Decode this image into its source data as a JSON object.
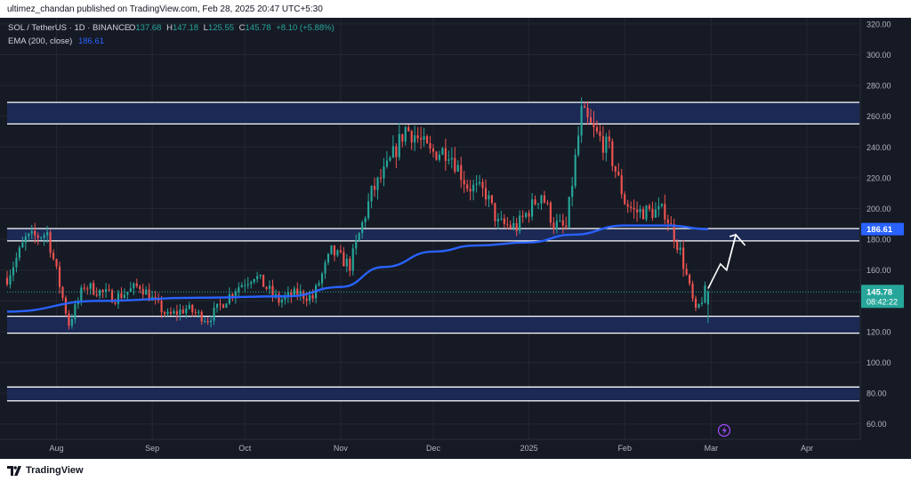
{
  "header": {
    "publisher_text": "ultimez_chandan published on TradingView.com, Feb 28, 2025 20:47 UTC+5:30"
  },
  "legend": {
    "symbol": "SOL / TetherUS · 1D · BINANCE",
    "open_label": "O",
    "open": "137.68",
    "high_label": "H",
    "high": "147.18",
    "low_label": "L",
    "low": "125.55",
    "close_label": "C",
    "close": "145.78",
    "change": "+8.10 (+5.88%)",
    "ema_label": "EMA (200, close)",
    "ema_value": "186.61"
  },
  "price_tags": {
    "ema": "186.61",
    "last": "145.78",
    "countdown": "08:42:22"
  },
  "footer": {
    "brand": "TradingView"
  },
  "colors": {
    "background": "#161a25",
    "grid": "#232733",
    "up": "#26a69a",
    "down": "#ef5350",
    "ema": "#2962ff",
    "zone_fill": "#1b2a56",
    "zone_line": "#ffffff",
    "axis_text": "#b2b5be",
    "last_price": "#26a69a",
    "ema_tag": "#2962ff"
  },
  "chart_data": {
    "type": "candlestick",
    "ylim": [
      50,
      324
    ],
    "y_ticks": [
      60,
      80,
      100,
      120,
      140,
      160,
      180,
      200,
      220,
      240,
      260,
      280,
      300,
      320
    ],
    "y_tick_labels": [
      "60.00",
      "80.00",
      "100.00",
      "120.00",
      "140.00",
      "160.00",
      "180.00",
      "200.00",
      "220.00",
      "240.00",
      "260.00",
      "280.00",
      "300.00",
      "320.00"
    ],
    "x_range": [
      "2024-07-16",
      "2025-04-18"
    ],
    "x_ticks": [
      {
        "date": "2024-08-01",
        "label": "Aug"
      },
      {
        "date": "2024-09-01",
        "label": "Sep"
      },
      {
        "date": "2024-10-01",
        "label": "Oct"
      },
      {
        "date": "2024-11-01",
        "label": "Nov"
      },
      {
        "date": "2024-12-01",
        "label": "Dec"
      },
      {
        "date": "2025-01-01",
        "label": "2025"
      },
      {
        "date": "2025-02-01",
        "label": "Feb"
      },
      {
        "date": "2025-03-01",
        "label": "Mar"
      },
      {
        "date": "2025-04-01",
        "label": "Apr"
      }
    ],
    "zones": [
      {
        "low": 255,
        "high": 269
      },
      {
        "low": 179,
        "high": 187
      },
      {
        "low": 119,
        "high": 130
      },
      {
        "low": 75,
        "high": 84
      }
    ],
    "keypoints": [
      [
        "2024-07-16",
        155
      ],
      [
        "2024-07-22",
        180
      ],
      [
        "2024-07-29",
        184
      ],
      [
        "2024-08-05",
        125
      ],
      [
        "2024-08-10",
        150
      ],
      [
        "2024-08-20",
        142
      ],
      [
        "2024-08-28",
        150
      ],
      [
        "2024-09-06",
        130
      ],
      [
        "2024-09-12",
        135
      ],
      [
        "2024-09-19",
        128
      ],
      [
        "2024-09-28",
        148
      ],
      [
        "2024-10-04",
        157
      ],
      [
        "2024-10-12",
        140
      ],
      [
        "2024-10-18",
        145
      ],
      [
        "2024-10-23",
        142
      ],
      [
        "2024-10-29",
        172
      ],
      [
        "2024-11-04",
        163
      ],
      [
        "2024-11-11",
        210
      ],
      [
        "2024-11-16",
        226
      ],
      [
        "2024-11-22",
        252
      ],
      [
        "2024-11-25",
        248
      ],
      [
        "2024-11-30",
        236
      ],
      [
        "2024-12-06",
        238
      ],
      [
        "2024-12-12",
        215
      ],
      [
        "2024-12-18",
        210
      ],
      [
        "2024-12-22",
        190
      ],
      [
        "2024-12-28",
        188
      ],
      [
        "2025-01-05",
        210
      ],
      [
        "2025-01-09",
        190
      ],
      [
        "2025-01-13",
        187
      ],
      [
        "2025-01-18",
        262
      ],
      [
        "2025-01-22",
        250
      ],
      [
        "2025-01-27",
        238
      ],
      [
        "2025-02-01",
        205
      ],
      [
        "2025-02-04",
        198
      ],
      [
        "2025-02-10",
        198
      ],
      [
        "2025-02-14",
        198
      ],
      [
        "2025-02-19",
        172
      ],
      [
        "2025-02-24",
        132
      ],
      [
        "2025-02-27",
        146
      ]
    ],
    "last_candle": {
      "date": "2025-02-28",
      "open": 137.68,
      "high": 147.18,
      "low": 125.55,
      "close": 145.78
    },
    "ema_200": [
      [
        "2024-07-16",
        133
      ],
      [
        "2024-08-15",
        140
      ],
      [
        "2024-09-15",
        142
      ],
      [
        "2024-10-15",
        143
      ],
      [
        "2024-11-01",
        149
      ],
      [
        "2024-11-15",
        162
      ],
      [
        "2024-12-01",
        172
      ],
      [
        "2024-12-15",
        176
      ],
      [
        "2025-01-01",
        178
      ],
      [
        "2025-01-15",
        183
      ],
      [
        "2025-02-01",
        189
      ],
      [
        "2025-02-15",
        189
      ],
      [
        "2025-02-28",
        186.61
      ]
    ],
    "projection_arrow": [
      [
        "2025-02-28",
        148
      ],
      [
        "2025-03-04",
        164
      ],
      [
        "2025-03-06",
        160
      ],
      [
        "2025-03-09",
        183
      ],
      [
        "2025-03-12",
        176
      ]
    ]
  }
}
